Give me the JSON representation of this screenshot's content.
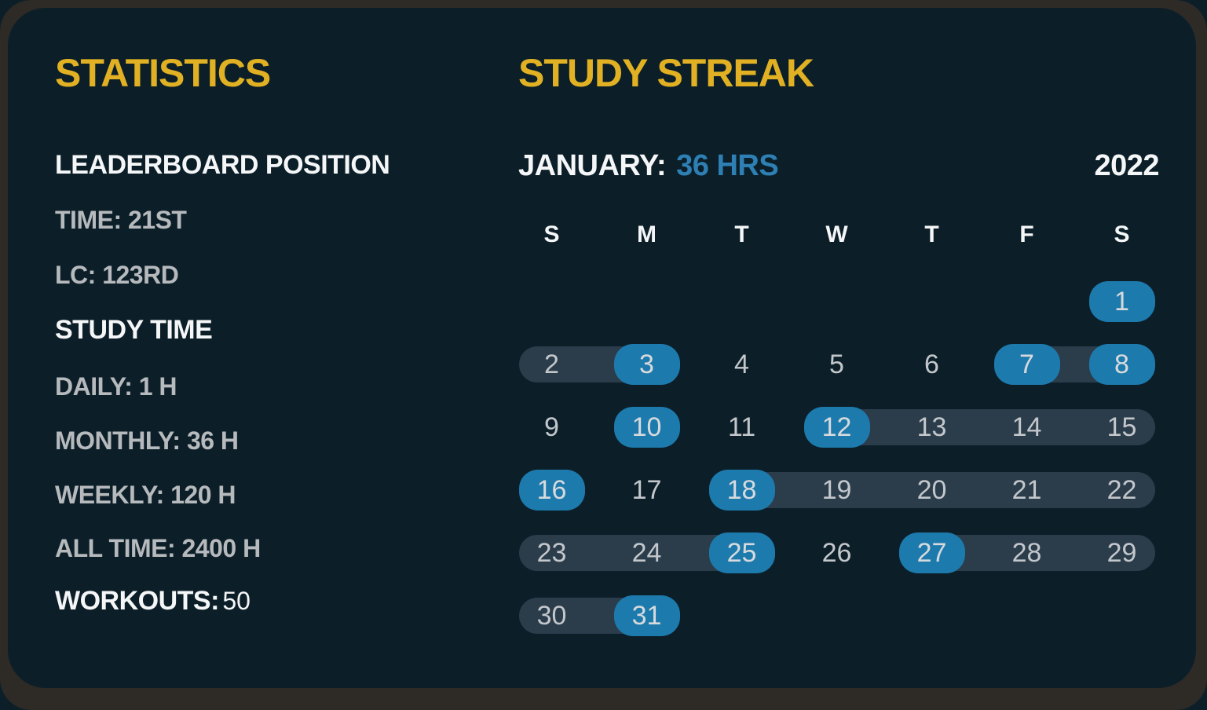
{
  "colors": {
    "card_bg": "#0c1f29",
    "frame_bg": "#2e2a26",
    "accent_yellow": "#e1b123",
    "accent_blue": "#2d7fb4",
    "pill_blue": "#1d7aad",
    "streak_bar": "#2b3c4b",
    "text_white": "#f5f6f7",
    "text_gray": "#b7babd",
    "day_number": "#c3c7cb",
    "day_number_active": "#d6dadd"
  },
  "stats": {
    "title": "STATISTICS",
    "leaderboard_header": "LEADERBOARD POSITION",
    "leaderboard_items": [
      "TIME: 21ST",
      "LC: 123RD"
    ],
    "study_time_header": "STUDY TIME",
    "study_items": [
      "DAILY: 1 H",
      "MONTHLY: 36 H",
      "WEEKLY: 120 H",
      "ALL TIME: 2400 H"
    ],
    "workouts_label": "WORKOUTS:",
    "workouts_value": "50"
  },
  "streak": {
    "title": "STUDY STREAK",
    "month_label": "JANUARY:",
    "month_hours": "36 HRS",
    "year": "2022",
    "calendar": {
      "weekdays": [
        "S",
        "M",
        "T",
        "W",
        "T",
        "F",
        "S"
      ],
      "first_day_column": 6,
      "days_in_month": 31,
      "study_days": [
        1,
        3,
        7,
        8,
        10,
        12,
        16,
        18,
        25,
        27,
        31
      ],
      "streak_ranges": [
        [
          2,
          3
        ],
        [
          7,
          8
        ],
        [
          12,
          15
        ],
        [
          18,
          22
        ],
        [
          23,
          25
        ],
        [
          27,
          29
        ],
        [
          30,
          31
        ]
      ]
    }
  }
}
